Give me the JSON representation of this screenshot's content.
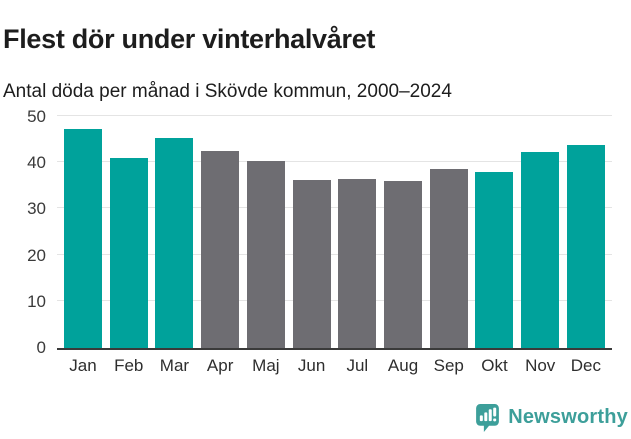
{
  "header": {
    "title": "Flest dör under vinterhalvåret",
    "subtitle": "Antal döda per månad i Skövde kommun, 2000–2024"
  },
  "chart_data": {
    "type": "bar",
    "title": "Flest dör under vinterhalvåret",
    "subtitle": "Antal döda per månad i Skövde kommun, 2000–2024",
    "categories": [
      "Jan",
      "Feb",
      "Mar",
      "Apr",
      "Maj",
      "Jun",
      "Jul",
      "Aug",
      "Sep",
      "Okt",
      "Nov",
      "Dec"
    ],
    "values": [
      47.5,
      41.1,
      45.4,
      42.7,
      40.5,
      36.3,
      36.6,
      36.2,
      38.8,
      38.1,
      42.5,
      43.9
    ],
    "bar_colors": [
      "#00a29b",
      "#00a29b",
      "#00a29b",
      "#6e6d72",
      "#6e6d72",
      "#6e6d72",
      "#6e6d72",
      "#6e6d72",
      "#6e6d72",
      "#00a29b",
      "#00a29b",
      "#00a29b"
    ],
    "highlight_color": "#00a29b",
    "muted_color": "#6e6d72",
    "xlabel": "",
    "ylabel": "",
    "ylim": [
      0,
      50
    ],
    "yticks": [
      0,
      10,
      20,
      30,
      40,
      50
    ],
    "grid": true,
    "legend": "none"
  },
  "footer": {
    "brand": "Newsworthy",
    "brand_color": "#3d9f9a",
    "logo_icon": "bar-chart-speech-bubble-icon"
  }
}
